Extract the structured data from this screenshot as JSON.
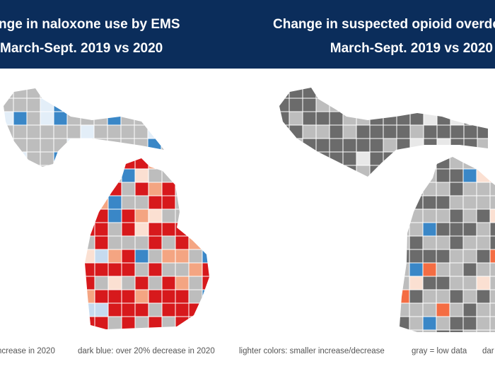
{
  "header": {
    "left_title": "nge in naloxone use by EMS",
    "left_subtitle": "March-Sept. 2019 vs 2020",
    "right_title": "Change in suspected opioid overdo",
    "right_subtitle": "March-Sept. 2019 vs 2020"
  },
  "legend": {
    "items": [
      "ncrease in 2020",
      "dark blue: over 20% decrease in 2020",
      "lighter colors: smaller increase/decrease",
      "gray = low data",
      "dar"
    ]
  }
}
